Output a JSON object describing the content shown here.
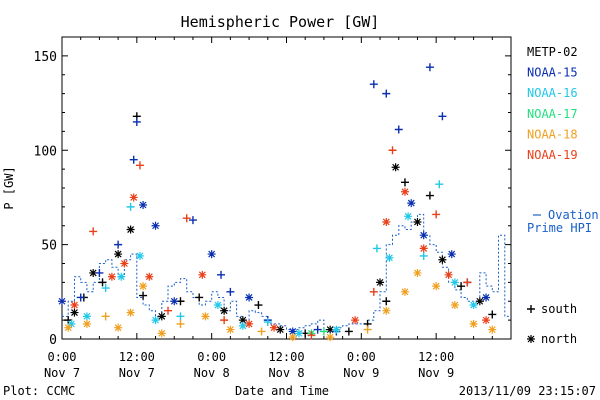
{
  "chart_data": {
    "type": "scatter",
    "title": "Hemispheric Power [GW]",
    "ylabel": "P [GW]",
    "xlabel": "Date and Time",
    "footer_left": "Plot: CCMC",
    "footer_right": "2013/11/09 23:15:07",
    "xlim": [
      "2013-11-07 00:00",
      "2013-11-10 00:00"
    ],
    "ylim": [
      0,
      160
    ],
    "y_ticks": [
      0,
      50,
      100,
      150
    ],
    "x_ticks": [
      {
        "t": "2013-11-07 00:00",
        "time": "0:00",
        "day": "Nov 7"
      },
      {
        "t": "2013-11-07 12:00",
        "time": "12:00",
        "day": "Nov 7"
      },
      {
        "t": "2013-11-08 00:00",
        "time": "0:00",
        "day": "Nov 8"
      },
      {
        "t": "2013-11-08 12:00",
        "time": "12:00",
        "day": "Nov 8"
      },
      {
        "t": "2013-11-09 00:00",
        "time": "0:00",
        "day": "Nov 9"
      },
      {
        "t": "2013-11-09 12:00",
        "time": "12:00",
        "day": "Nov 9"
      }
    ],
    "legend_position": "right",
    "marker_legend": [
      {
        "symbol": "+",
        "label": "south"
      },
      {
        "symbol": "*",
        "label": "north"
      }
    ],
    "ovation": {
      "label_line1": "Ovation",
      "label_line2": "Prime HPI",
      "color": "#1a60c8",
      "x": [
        "2013-11-07 00:00",
        "2013-11-07 01:00",
        "2013-11-07 02:00",
        "2013-11-07 03:00",
        "2013-11-07 04:00",
        "2013-11-07 05:00",
        "2013-11-07 06:00",
        "2013-11-07 07:00",
        "2013-11-07 08:00",
        "2013-11-07 09:00",
        "2013-11-07 10:00",
        "2013-11-07 11:00",
        "2013-11-07 12:00",
        "2013-11-07 13:00",
        "2013-11-07 14:00",
        "2013-11-07 15:00",
        "2013-11-07 16:00",
        "2013-11-07 17:00",
        "2013-11-07 18:00",
        "2013-11-07 19:00",
        "2013-11-07 20:00",
        "2013-11-07 21:00",
        "2013-11-07 22:00",
        "2013-11-07 23:00",
        "2013-11-08 00:00",
        "2013-11-08 01:00",
        "2013-11-08 02:00",
        "2013-11-08 03:00",
        "2013-11-08 04:00",
        "2013-11-08 05:00",
        "2013-11-08 06:00",
        "2013-11-08 07:00",
        "2013-11-08 08:00",
        "2013-11-08 09:00",
        "2013-11-08 10:00",
        "2013-11-08 11:00",
        "2013-11-08 12:00",
        "2013-11-08 13:00",
        "2013-11-08 14:00",
        "2013-11-08 15:00",
        "2013-11-08 16:00",
        "2013-11-08 17:00",
        "2013-11-08 18:00",
        "2013-11-08 19:00",
        "2013-11-08 20:00",
        "2013-11-08 21:00",
        "2013-11-08 22:00",
        "2013-11-08 23:00",
        "2013-11-09 00:00",
        "2013-11-09 01:00",
        "2013-11-09 02:00",
        "2013-11-09 03:00",
        "2013-11-09 04:00",
        "2013-11-09 05:00",
        "2013-11-09 06:00",
        "2013-11-09 07:00",
        "2013-11-09 08:00",
        "2013-11-09 09:00",
        "2013-11-09 10:00",
        "2013-11-09 11:00",
        "2013-11-09 12:00",
        "2013-11-09 13:00",
        "2013-11-09 14:00",
        "2013-11-09 15:00",
        "2013-11-09 16:00",
        "2013-11-09 17:00",
        "2013-11-09 18:00",
        "2013-11-09 19:00",
        "2013-11-09 20:00",
        "2013-11-09 21:00",
        "2013-11-09 22:00",
        "2013-11-09 23:00"
      ],
      "values": [
        12,
        20,
        33,
        30,
        25,
        30,
        40,
        42,
        38,
        33,
        42,
        45,
        22,
        18,
        15,
        12,
        20,
        28,
        30,
        32,
        25,
        22,
        18,
        20,
        25,
        22,
        15,
        20,
        12,
        10,
        15,
        14,
        12,
        8,
        8,
        7,
        5,
        5,
        6,
        7,
        8,
        10,
        5,
        5,
        6,
        7,
        8,
        8,
        8,
        10,
        15,
        25,
        50,
        55,
        60,
        58,
        62,
        66,
        55,
        50,
        46,
        38,
        30,
        26,
        22,
        20,
        20,
        35,
        28,
        25,
        55,
        12
      ]
    },
    "series": [
      {
        "name": "METP-02",
        "color": "#000000",
        "points": [
          {
            "t": "2013-11-07 01:00",
            "v": 10,
            "m": "+"
          },
          {
            "t": "2013-11-07 02:00",
            "v": 14,
            "m": "*"
          },
          {
            "t": "2013-11-07 03:30",
            "v": 22,
            "m": "+"
          },
          {
            "t": "2013-11-07 05:00",
            "v": 35,
            "m": "*"
          },
          {
            "t": "2013-11-07 06:30",
            "v": 30,
            "m": "+"
          },
          {
            "t": "2013-11-07 09:00",
            "v": 45,
            "m": "*"
          },
          {
            "t": "2013-11-07 11:00",
            "v": 58,
            "m": "*"
          },
          {
            "t": "2013-11-07 12:00",
            "v": 118,
            "m": "+"
          },
          {
            "t": "2013-11-07 13:00",
            "v": 23,
            "m": "+"
          },
          {
            "t": "2013-11-07 16:00",
            "v": 12,
            "m": "*"
          },
          {
            "t": "2013-11-07 19:00",
            "v": 20,
            "m": "+"
          },
          {
            "t": "2013-11-07 22:00",
            "v": 22,
            "m": "+"
          },
          {
            "t": "2013-11-08 02:00",
            "v": 15,
            "m": "*"
          },
          {
            "t": "2013-11-08 05:00",
            "v": 10,
            "m": "*"
          },
          {
            "t": "2013-11-08 07:30",
            "v": 18,
            "m": "+"
          },
          {
            "t": "2013-11-08 11:00",
            "v": 5,
            "m": "*"
          },
          {
            "t": "2013-11-08 15:00",
            "v": 3,
            "m": "+"
          },
          {
            "t": "2013-11-08 19:00",
            "v": 5,
            "m": "*"
          },
          {
            "t": "2013-11-08 22:00",
            "v": 4,
            "m": "+"
          },
          {
            "t": "2013-11-09 01:00",
            "v": 8,
            "m": "+"
          },
          {
            "t": "2013-11-09 03:00",
            "v": 30,
            "m": "*"
          },
          {
            "t": "2013-11-09 04:00",
            "v": 20,
            "m": "+"
          },
          {
            "t": "2013-11-09 05:30",
            "v": 91,
            "m": "*"
          },
          {
            "t": "2013-11-09 07:00",
            "v": 83,
            "m": "+"
          },
          {
            "t": "2013-11-09 09:00",
            "v": 62,
            "m": "*"
          },
          {
            "t": "2013-11-09 11:00",
            "v": 76,
            "m": "+"
          },
          {
            "t": "2013-11-09 13:00",
            "v": 42,
            "m": "*"
          },
          {
            "t": "2013-11-09 16:00",
            "v": 28,
            "m": "+"
          },
          {
            "t": "2013-11-09 19:00",
            "v": 20,
            "m": "*"
          },
          {
            "t": "2013-11-09 21:00",
            "v": 13,
            "m": "+"
          }
        ]
      },
      {
        "name": "NOAA-15",
        "color": "#0a2fb0",
        "points": [
          {
            "t": "2013-11-07 00:00",
            "v": 20,
            "m": "*"
          },
          {
            "t": "2013-11-07 03:00",
            "v": 22,
            "m": "+"
          },
          {
            "t": "2013-11-07 06:00",
            "v": 35,
            "m": "+"
          },
          {
            "t": "2013-11-07 09:00",
            "v": 50,
            "m": "+"
          },
          {
            "t": "2013-11-07 11:30",
            "v": 95,
            "m": "+"
          },
          {
            "t": "2013-11-07 12:00",
            "v": 115,
            "m": "+"
          },
          {
            "t": "2013-11-07 13:00",
            "v": 71,
            "m": "*"
          },
          {
            "t": "2013-11-07 15:00",
            "v": 60,
            "m": "*"
          },
          {
            "t": "2013-11-07 18:00",
            "v": 20,
            "m": "*"
          },
          {
            "t": "2013-11-07 21:00",
            "v": 63,
            "m": "+"
          },
          {
            "t": "2013-11-08 00:00",
            "v": 45,
            "m": "*"
          },
          {
            "t": "2013-11-08 01:30",
            "v": 34,
            "m": "+"
          },
          {
            "t": "2013-11-08 03:00",
            "v": 25,
            "m": "+"
          },
          {
            "t": "2013-11-08 06:00",
            "v": 22,
            "m": "*"
          },
          {
            "t": "2013-11-08 09:00",
            "v": 10,
            "m": "+"
          },
          {
            "t": "2013-11-08 13:00",
            "v": 4,
            "m": "*"
          },
          {
            "t": "2013-11-08 17:00",
            "v": 5,
            "m": "+"
          },
          {
            "t": "2013-11-08 20:00",
            "v": 4,
            "m": "+"
          },
          {
            "t": "2013-11-09 02:00",
            "v": 135,
            "m": "+"
          },
          {
            "t": "2013-11-09 04:00",
            "v": 130,
            "m": "+"
          },
          {
            "t": "2013-11-09 06:00",
            "v": 111,
            "m": "+"
          },
          {
            "t": "2013-11-09 08:00",
            "v": 72,
            "m": "*"
          },
          {
            "t": "2013-11-09 10:00",
            "v": 55,
            "m": "*"
          },
          {
            "t": "2013-11-09 11:00",
            "v": 144,
            "m": "+"
          },
          {
            "t": "2013-11-09 13:00",
            "v": 118,
            "m": "+"
          },
          {
            "t": "2013-11-09 14:30",
            "v": 45,
            "m": "*"
          },
          {
            "t": "2013-11-09 17:00",
            "v": 30,
            "m": "+"
          },
          {
            "t": "2013-11-09 20:00",
            "v": 22,
            "m": "*"
          }
        ]
      },
      {
        "name": "NOAA-16",
        "color": "#22c8e8",
        "points": [
          {
            "t": "2013-11-07 01:30",
            "v": 8,
            "m": "*"
          },
          {
            "t": "2013-11-07 04:00",
            "v": 12,
            "m": "*"
          },
          {
            "t": "2013-11-07 07:00",
            "v": 27,
            "m": "+"
          },
          {
            "t": "2013-11-07 09:30",
            "v": 33,
            "m": "*"
          },
          {
            "t": "2013-11-07 11:00",
            "v": 70,
            "m": "+"
          },
          {
            "t": "2013-11-07 12:30",
            "v": 44,
            "m": "*"
          },
          {
            "t": "2013-11-07 15:00",
            "v": 10,
            "m": "*"
          },
          {
            "t": "2013-11-07 19:00",
            "v": 12,
            "m": "+"
          },
          {
            "t": "2013-11-08 01:00",
            "v": 18,
            "m": "*"
          },
          {
            "t": "2013-11-08 05:00",
            "v": 7,
            "m": "*"
          },
          {
            "t": "2013-11-08 09:00",
            "v": 9,
            "m": "+"
          },
          {
            "t": "2013-11-08 14:00",
            "v": 3,
            "m": "*"
          },
          {
            "t": "2013-11-08 20:00",
            "v": 5,
            "m": "*"
          },
          {
            "t": "2013-11-09 02:30",
            "v": 48,
            "m": "+"
          },
          {
            "t": "2013-11-09 04:30",
            "v": 43,
            "m": "*"
          },
          {
            "t": "2013-11-09 07:30",
            "v": 65,
            "m": "*"
          },
          {
            "t": "2013-11-09 10:00",
            "v": 44,
            "m": "+"
          },
          {
            "t": "2013-11-09 12:30",
            "v": 82,
            "m": "+"
          },
          {
            "t": "2013-11-09 15:00",
            "v": 30,
            "m": "*"
          },
          {
            "t": "2013-11-09 18:00",
            "v": 18,
            "m": "*"
          }
        ]
      },
      {
        "name": "NOAA-17",
        "color": "#22e080",
        "points": [
          {
            "t": "2013-11-08 16:00",
            "v": 3,
            "m": "*"
          },
          {
            "t": "2013-11-08 18:00",
            "v": 4,
            "m": "+"
          }
        ]
      },
      {
        "name": "NOAA-18",
        "color": "#f0a020",
        "points": [
          {
            "t": "2013-11-07 01:00",
            "v": 6,
            "m": "*"
          },
          {
            "t": "2013-11-07 04:00",
            "v": 8,
            "m": "*"
          },
          {
            "t": "2013-11-07 07:00",
            "v": 12,
            "m": "+"
          },
          {
            "t": "2013-11-07 09:00",
            "v": 6,
            "m": "*"
          },
          {
            "t": "2013-11-07 11:00",
            "v": 14,
            "m": "*"
          },
          {
            "t": "2013-11-07 13:00",
            "v": 28,
            "m": "*"
          },
          {
            "t": "2013-11-07 16:00",
            "v": 3,
            "m": "*"
          },
          {
            "t": "2013-11-07 19:00",
            "v": 8,
            "m": "+"
          },
          {
            "t": "2013-11-07 23:00",
            "v": 12,
            "m": "*"
          },
          {
            "t": "2013-11-08 03:00",
            "v": 5,
            "m": "*"
          },
          {
            "t": "2013-11-08 08:00",
            "v": 4,
            "m": "+"
          },
          {
            "t": "2013-11-08 13:00",
            "v": 1,
            "m": "*"
          },
          {
            "t": "2013-11-08 19:00",
            "v": 1,
            "m": "*"
          },
          {
            "t": "2013-11-09 01:00",
            "v": 5,
            "m": "+"
          },
          {
            "t": "2013-11-09 04:00",
            "v": 15,
            "m": "*"
          },
          {
            "t": "2013-11-09 07:00",
            "v": 25,
            "m": "*"
          },
          {
            "t": "2013-11-09 09:00",
            "v": 35,
            "m": "*"
          },
          {
            "t": "2013-11-09 12:00",
            "v": 28,
            "m": "*"
          },
          {
            "t": "2013-11-09 15:00",
            "v": 18,
            "m": "*"
          },
          {
            "t": "2013-11-09 18:00",
            "v": 8,
            "m": "*"
          },
          {
            "t": "2013-11-09 21:00",
            "v": 5,
            "m": "*"
          }
        ]
      },
      {
        "name": "NOAA-19",
        "color": "#e8401a",
        "points": [
          {
            "t": "2013-11-07 02:00",
            "v": 18,
            "m": "*"
          },
          {
            "t": "2013-11-07 05:00",
            "v": 57,
            "m": "+"
          },
          {
            "t": "2013-11-07 08:00",
            "v": 33,
            "m": "*"
          },
          {
            "t": "2013-11-07 10:00",
            "v": 40,
            "m": "*"
          },
          {
            "t": "2013-11-07 11:30",
            "v": 75,
            "m": "*"
          },
          {
            "t": "2013-11-07 12:30",
            "v": 92,
            "m": "+"
          },
          {
            "t": "2013-11-07 14:00",
            "v": 33,
            "m": "*"
          },
          {
            "t": "2013-11-07 17:00",
            "v": 15,
            "m": "+"
          },
          {
            "t": "2013-11-07 20:00",
            "v": 64,
            "m": "+"
          },
          {
            "t": "2013-11-07 22:30",
            "v": 34,
            "m": "*"
          },
          {
            "t": "2013-11-08 02:00",
            "v": 10,
            "m": "+"
          },
          {
            "t": "2013-11-08 06:00",
            "v": 8,
            "m": "*"
          },
          {
            "t": "2013-11-08 10:00",
            "v": 6,
            "m": "*"
          },
          {
            "t": "2013-11-08 16:00",
            "v": 2,
            "m": "+"
          },
          {
            "t": "2013-11-08 23:00",
            "v": 10,
            "m": "*"
          },
          {
            "t": "2013-11-09 02:00",
            "v": 25,
            "m": "+"
          },
          {
            "t": "2013-11-09 04:00",
            "v": 62,
            "m": "*"
          },
          {
            "t": "2013-11-09 05:00",
            "v": 100,
            "m": "+"
          },
          {
            "t": "2013-11-09 07:00",
            "v": 78,
            "m": "*"
          },
          {
            "t": "2013-11-09 10:00",
            "v": 48,
            "m": "*"
          },
          {
            "t": "2013-11-09 12:00",
            "v": 66,
            "m": "+"
          },
          {
            "t": "2013-11-09 14:00",
            "v": 34,
            "m": "*"
          },
          {
            "t": "2013-11-09 17:00",
            "v": 30,
            "m": "+"
          },
          {
            "t": "2013-11-09 20:00",
            "v": 10,
            "m": "*"
          }
        ]
      }
    ]
  }
}
